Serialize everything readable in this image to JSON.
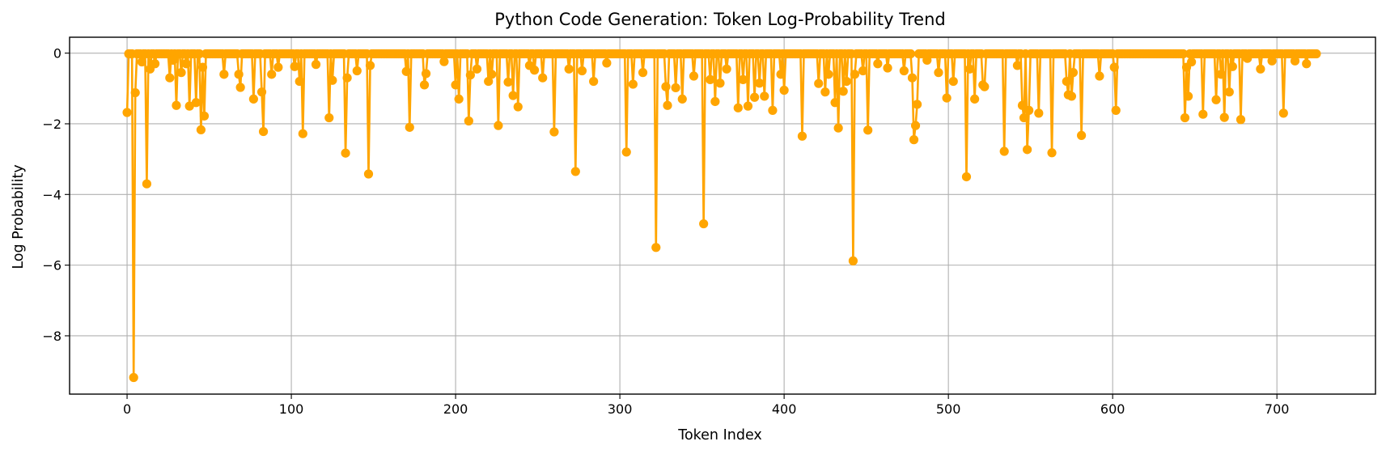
{
  "chart_data": {
    "type": "line",
    "title": "Python Code Generation: Token Log-Probability Trend",
    "xlabel": "Token Index",
    "ylabel": "Log Probability",
    "xlim": [
      -35,
      760
    ],
    "ylim": [
      -9.65,
      0.45
    ],
    "xticks": [
      0,
      100,
      200,
      300,
      400,
      500,
      600,
      700
    ],
    "xtick_labels": [
      "0",
      "100",
      "200",
      "300",
      "400",
      "500",
      "600",
      "700"
    ],
    "yticks": [
      0,
      -2,
      -4,
      -6,
      -8
    ],
    "ytick_labels": [
      "0",
      "−2",
      "−4",
      "−6",
      "−8"
    ],
    "grid": true,
    "marker": "circle",
    "color": "#FFA500",
    "series": [
      {
        "n_points": 725,
        "x_start": 0,
        "baseline_value": -0.02,
        "dips": [
          [
            0,
            -1.68
          ],
          [
            4,
            -9.18
          ],
          [
            5,
            -1.12
          ],
          [
            9,
            -0.25
          ],
          [
            12,
            -3.7
          ],
          [
            14,
            -0.45
          ],
          [
            17,
            -0.3
          ],
          [
            26,
            -0.7
          ],
          [
            28,
            -0.2
          ],
          [
            30,
            -1.48
          ],
          [
            33,
            -0.55
          ],
          [
            36,
            -0.3
          ],
          [
            38,
            -1.5
          ],
          [
            42,
            -1.4
          ],
          [
            45,
            -2.17
          ],
          [
            46,
            -0.4
          ],
          [
            47,
            -1.78
          ],
          [
            59,
            -0.6
          ],
          [
            68,
            -0.6
          ],
          [
            69,
            -0.97
          ],
          [
            77,
            -1.3
          ],
          [
            82,
            -1.1
          ],
          [
            83,
            -2.22
          ],
          [
            88,
            -0.6
          ],
          [
            92,
            -0.4
          ],
          [
            102,
            -0.38
          ],
          [
            105,
            -0.8
          ],
          [
            107,
            -2.28
          ],
          [
            115,
            -0.32
          ],
          [
            123,
            -1.83
          ],
          [
            125,
            -0.77
          ],
          [
            133,
            -2.83
          ],
          [
            134,
            -0.7
          ],
          [
            140,
            -0.5
          ],
          [
            147,
            -3.42
          ],
          [
            148,
            -0.35
          ],
          [
            170,
            -0.52
          ],
          [
            172,
            -2.1
          ],
          [
            181,
            -0.9
          ],
          [
            182,
            -0.58
          ],
          [
            193,
            -0.24
          ],
          [
            200,
            -0.9
          ],
          [
            202,
            -1.3
          ],
          [
            208,
            -1.92
          ],
          [
            209,
            -0.62
          ],
          [
            213,
            -0.45
          ],
          [
            220,
            -0.8
          ],
          [
            222,
            -0.6
          ],
          [
            226,
            -2.05
          ],
          [
            232,
            -0.82
          ],
          [
            235,
            -1.2
          ],
          [
            238,
            -1.52
          ],
          [
            245,
            -0.35
          ],
          [
            248,
            -0.48
          ],
          [
            253,
            -0.7
          ],
          [
            260,
            -2.23
          ],
          [
            269,
            -0.45
          ],
          [
            273,
            -3.35
          ],
          [
            277,
            -0.5
          ],
          [
            284,
            -0.8
          ],
          [
            292,
            -0.28
          ],
          [
            304,
            -2.8
          ],
          [
            308,
            -0.88
          ],
          [
            314,
            -0.55
          ],
          [
            322,
            -5.5
          ],
          [
            328,
            -0.95
          ],
          [
            329,
            -1.48
          ],
          [
            334,
            -0.98
          ],
          [
            338,
            -1.3
          ],
          [
            345,
            -0.65
          ],
          [
            351,
            -4.83
          ],
          [
            355,
            -0.75
          ],
          [
            358,
            -1.37
          ],
          [
            361,
            -0.85
          ],
          [
            365,
            -0.45
          ],
          [
            372,
            -1.55
          ],
          [
            375,
            -0.75
          ],
          [
            378,
            -1.5
          ],
          [
            382,
            -1.25
          ],
          [
            385,
            -0.85
          ],
          [
            388,
            -1.22
          ],
          [
            393,
            -1.62
          ],
          [
            398,
            -0.6
          ],
          [
            400,
            -1.05
          ],
          [
            411,
            -2.35
          ],
          [
            421,
            -0.86
          ],
          [
            425,
            -1.1
          ],
          [
            427,
            -0.6
          ],
          [
            431,
            -1.4
          ],
          [
            433,
            -2.12
          ],
          [
            436,
            -1.08
          ],
          [
            438,
            -0.8
          ],
          [
            442,
            -5.88
          ],
          [
            443,
            -0.6
          ],
          [
            448,
            -0.5
          ],
          [
            451,
            -2.18
          ],
          [
            457,
            -0.3
          ],
          [
            463,
            -0.42
          ],
          [
            473,
            -0.5
          ],
          [
            478,
            -0.7
          ],
          [
            479,
            -2.45
          ],
          [
            480,
            -2.05
          ],
          [
            481,
            -1.45
          ],
          [
            487,
            -0.2
          ],
          [
            494,
            -0.55
          ],
          [
            499,
            -1.27
          ],
          [
            503,
            -0.8
          ],
          [
            511,
            -3.5
          ],
          [
            513,
            -0.45
          ],
          [
            516,
            -1.3
          ],
          [
            521,
            -0.9
          ],
          [
            522,
            -0.95
          ],
          [
            534,
            -2.78
          ],
          [
            542,
            -0.35
          ],
          [
            545,
            -1.48
          ],
          [
            546,
            -1.83
          ],
          [
            548,
            -2.73
          ],
          [
            549,
            -1.62
          ],
          [
            555,
            -1.7
          ],
          [
            563,
            -2.82
          ],
          [
            572,
            -0.8
          ],
          [
            573,
            -1.18
          ],
          [
            575,
            -1.22
          ],
          [
            576,
            -0.55
          ],
          [
            581,
            -2.33
          ],
          [
            592,
            -0.65
          ],
          [
            601,
            -0.4
          ],
          [
            602,
            -1.62
          ],
          [
            644,
            -1.83
          ],
          [
            645,
            -0.4
          ],
          [
            646,
            -1.22
          ],
          [
            648,
            -0.25
          ],
          [
            655,
            -1.73
          ],
          [
            663,
            -1.32
          ],
          [
            666,
            -0.6
          ],
          [
            668,
            -1.82
          ],
          [
            671,
            -1.1
          ],
          [
            673,
            -0.38
          ],
          [
            678,
            -1.88
          ],
          [
            682,
            -0.15
          ],
          [
            690,
            -0.45
          ],
          [
            697,
            -0.22
          ],
          [
            704,
            -1.7
          ],
          [
            711,
            -0.22
          ],
          [
            718,
            -0.3
          ]
        ]
      }
    ]
  }
}
